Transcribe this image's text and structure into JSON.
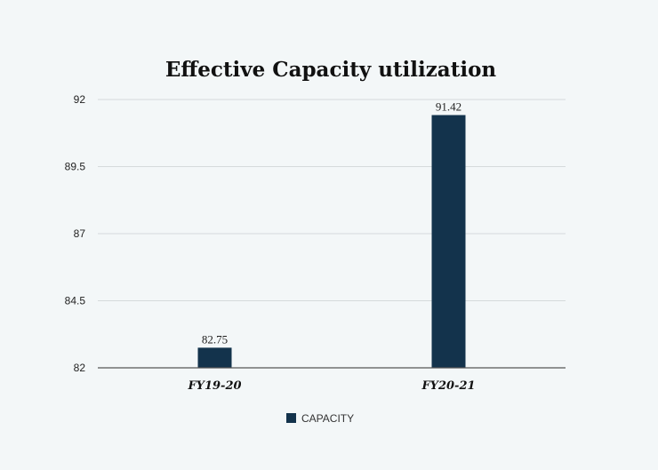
{
  "chart_data": {
    "type": "bar",
    "title": "Effective Capacity utilization",
    "categories": [
      "FY19-20",
      "FY20-21"
    ],
    "series": [
      {
        "name": "CAPACITY",
        "values": [
          82.75,
          91.42
        ]
      }
    ],
    "data_labels": [
      "82.75",
      "91.42"
    ],
    "yticks": [
      82,
      84.5,
      87,
      89.5,
      92
    ],
    "ytick_labels": [
      "82",
      "84.5",
      "87",
      "89.5",
      "92"
    ],
    "ylim": [
      82,
      92
    ],
    "xlabel": "",
    "ylabel": "",
    "grid": true,
    "legend_position": "bottom",
    "colors": {
      "bar": "#13334c",
      "background": "#f3f7f8"
    }
  }
}
